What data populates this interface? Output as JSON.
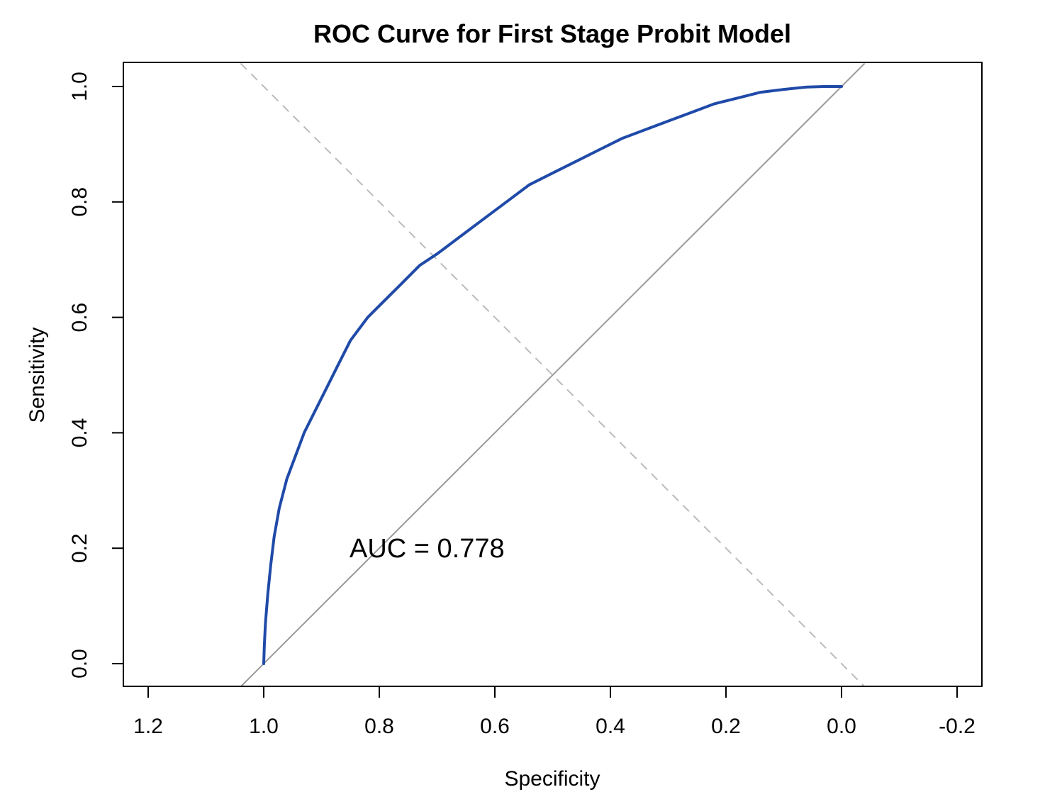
{
  "chart_data": {
    "type": "line",
    "title": "ROC Curve for First Stage Probit Model",
    "xlabel": "Specificity",
    "ylabel": "Sensitivity",
    "x_reversed": true,
    "xlim": [
      1.2,
      -0.2
    ],
    "ylim": [
      0.0,
      1.0
    ],
    "x_ticks": [
      "1.2",
      "1.0",
      "0.8",
      "0.6",
      "0.4",
      "0.2",
      "0.0",
      "-0.2"
    ],
    "y_ticks": [
      "0.0",
      "0.2",
      "0.4",
      "0.6",
      "0.8",
      "1.0"
    ],
    "grid": false,
    "legend": "none",
    "annotation": "AUC = 0.778",
    "series": [
      {
        "x": [
          1.0,
          0.999,
          0.997,
          0.993,
          0.988,
          0.982,
          0.973,
          0.96,
          0.945,
          0.93,
          0.91,
          0.89,
          0.87,
          0.85,
          0.82,
          0.79,
          0.76,
          0.73,
          0.7,
          0.66,
          0.62,
          0.58,
          0.54,
          0.5,
          0.46,
          0.42,
          0.38,
          0.34,
          0.3,
          0.26,
          0.22,
          0.18,
          0.14,
          0.1,
          0.06,
          0.03,
          0.0
        ],
        "y": [
          0.0,
          0.03,
          0.07,
          0.12,
          0.17,
          0.22,
          0.27,
          0.32,
          0.36,
          0.4,
          0.44,
          0.48,
          0.52,
          0.56,
          0.6,
          0.63,
          0.66,
          0.69,
          0.71,
          0.74,
          0.77,
          0.8,
          0.83,
          0.85,
          0.87,
          0.89,
          0.91,
          0.925,
          0.94,
          0.955,
          0.97,
          0.98,
          0.99,
          0.995,
          0.999,
          1.0,
          1.0
        ]
      }
    ],
    "reference_lines": [
      {
        "style": "solid",
        "x": [
          1.0,
          0.0
        ],
        "y": [
          0.0,
          1.0
        ]
      },
      {
        "style": "dashed",
        "x": [
          1.0,
          0.0
        ],
        "y": [
          1.0,
          0.0
        ]
      }
    ],
    "colors": {
      "curve": "#1f4aa8",
      "diagonal": "#999999",
      "dashed": "#bbbbbb",
      "axis": "#000000"
    }
  }
}
